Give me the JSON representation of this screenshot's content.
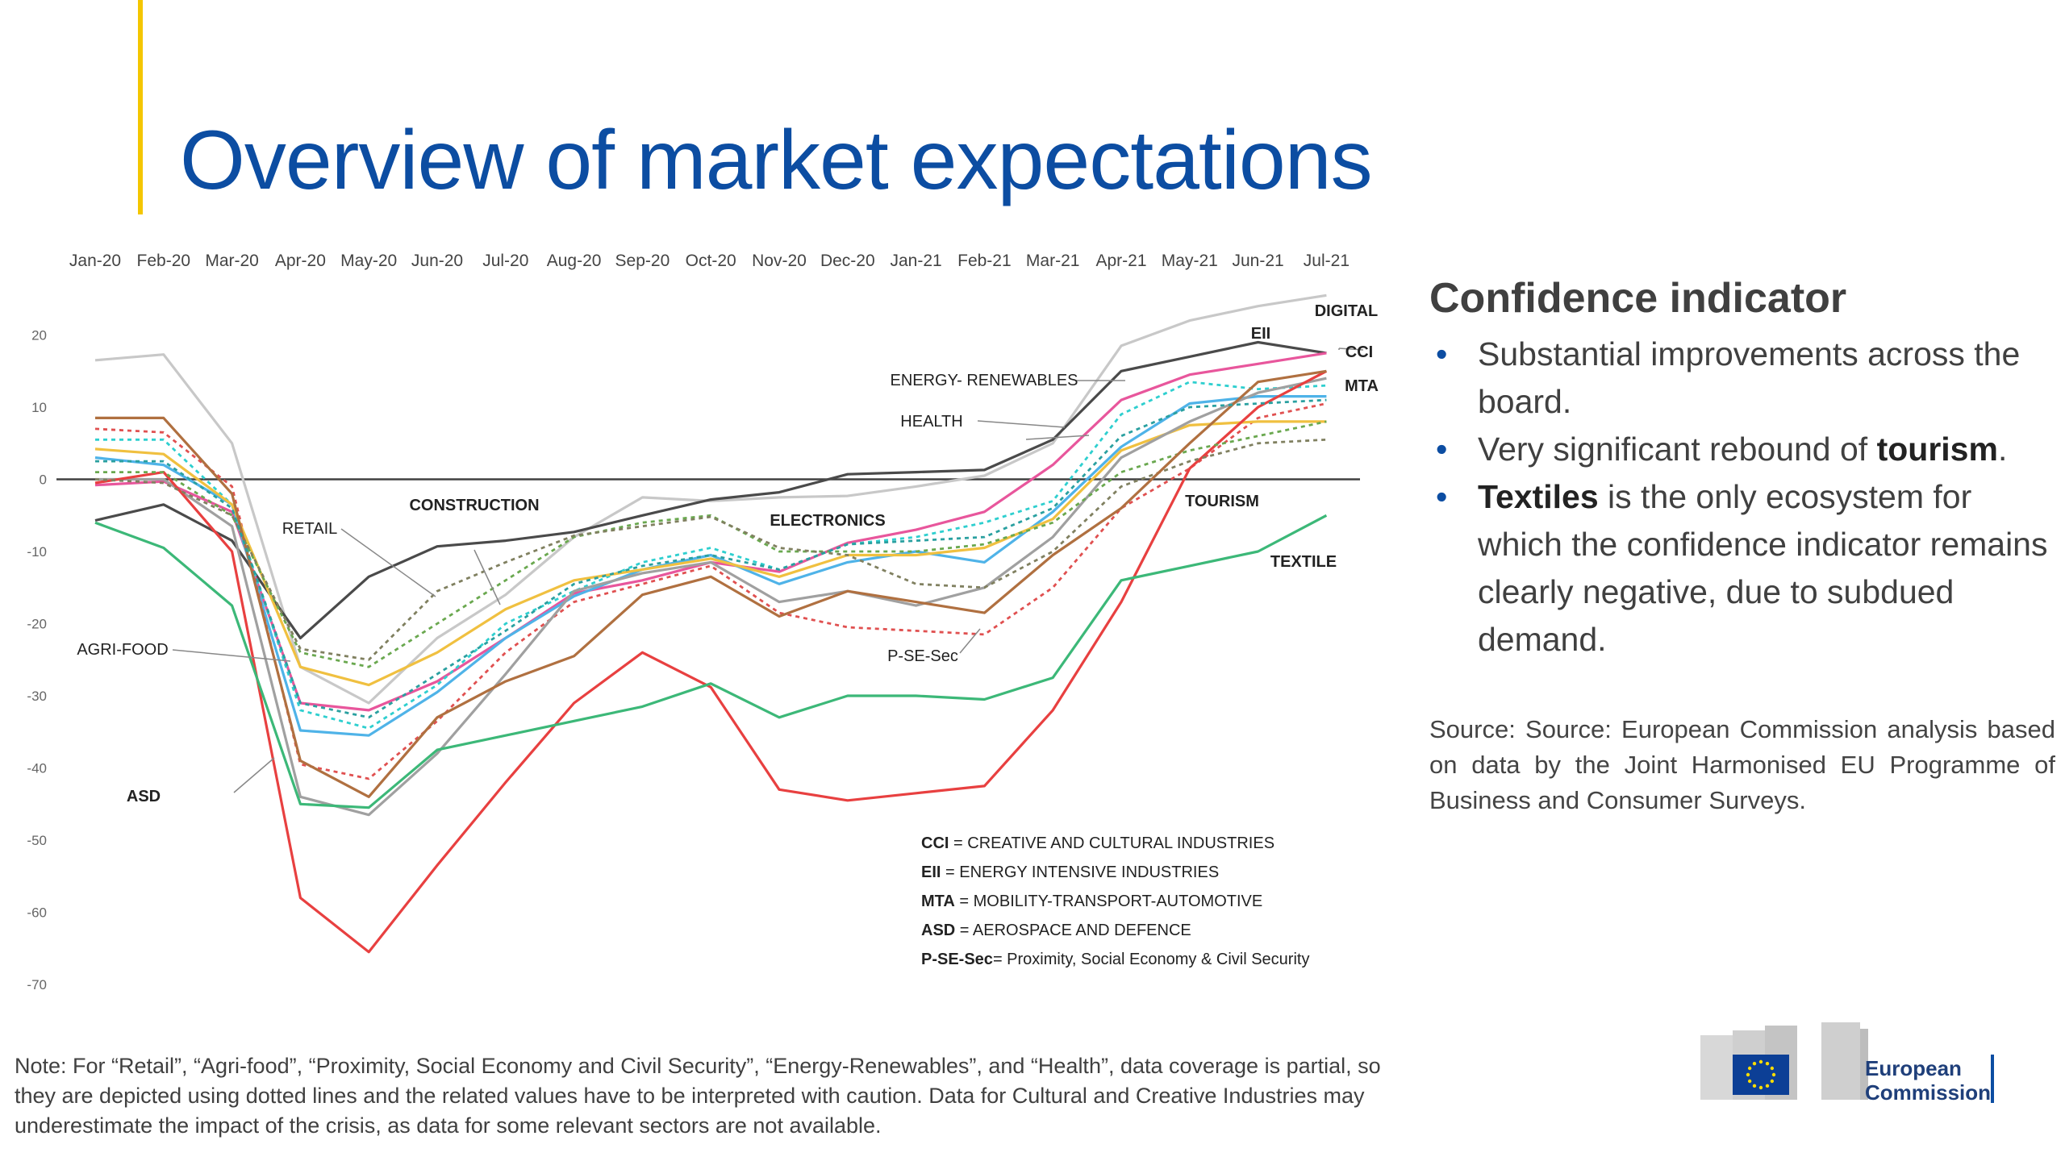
{
  "slide": {
    "title": "Overview of market expectations"
  },
  "panel": {
    "heading": "Confidence indicator",
    "bullets": [
      {
        "parts": [
          {
            "text": "Substantial improvements across the board.",
            "bold": false
          }
        ]
      },
      {
        "parts": [
          {
            "text": "Very significant rebound of ",
            "bold": false
          },
          {
            "text": "tourism",
            "bold": true
          },
          {
            "text": ".",
            "bold": false
          }
        ]
      },
      {
        "parts": [
          {
            "text": "Textiles",
            "bold": true
          },
          {
            "text": " is the only ecosystem for which the confidence indicator remains clearly negative, due to subdued demand.",
            "bold": false
          }
        ]
      }
    ],
    "source": "Source: Source: European Commission analysis based on data by the Joint Harmonised EU Programme of Business and Consumer Surveys."
  },
  "note": "Note: For “Retail”, “Agri-food”, “Proximity, Social Economy and Civil Security”, “Energy-Renewables”, and “Health”, data coverage is partial, so they are depicted using dotted lines and the related values have to be interpreted with caution. Data for Cultural and Creative Industries may underestimate the impact of the crisis, as data for some relevant sectors are not available.",
  "logo": {
    "line1": "European",
    "line2": "Commission"
  },
  "chart_data": {
    "type": "line",
    "title": "",
    "xlabel": "",
    "ylabel": "",
    "ylim": [
      -70,
      20
    ],
    "yticks": [
      20,
      10,
      0,
      -10,
      -20,
      -30,
      -40,
      -50,
      -60,
      -70
    ],
    "x": [
      "Jan-20",
      "Feb-20",
      "Mar-20",
      "Apr-20",
      "May-20",
      "Jun-20",
      "Jul-20",
      "Aug-20",
      "Sep-20",
      "Oct-20",
      "Nov-20",
      "Dec-20",
      "Jan-21",
      "Feb-21",
      "Mar-21",
      "Apr-21",
      "May-21",
      "Jun-21",
      "Jul-21"
    ],
    "series": [
      {
        "name": "DIGITAL",
        "color": "#c8c8c8",
        "dash": false,
        "values": [
          16.5,
          17.3,
          5,
          -26,
          -31,
          -22,
          -16,
          -8,
          -2.5,
          -3,
          -2.5,
          -2.3,
          -1,
          0.5,
          5,
          18.5,
          22,
          24,
          25.5
        ]
      },
      {
        "name": "EII",
        "color": "#4a4a4a",
        "dash": false,
        "values": [
          -5.7,
          -3.5,
          -8.5,
          -22,
          -13.5,
          -9.3,
          -8.5,
          -7.3,
          -5,
          -2.8,
          -1.8,
          0.7,
          1,
          1.3,
          5.5,
          15,
          17,
          19,
          17.5
        ]
      },
      {
        "name": "CCI",
        "color": "#e8569c",
        "dash": false,
        "values": [
          -0.8,
          -0.3,
          -4.5,
          -31,
          -32,
          -28,
          -22,
          -15.8,
          -14,
          -11.5,
          -12.8,
          -8.8,
          -7,
          -4.5,
          2,
          11,
          14.5,
          16,
          17.5
        ]
      },
      {
        "name": "MTA",
        "color": "#4fb3e8",
        "dash": false,
        "values": [
          3,
          2,
          -3.5,
          -34.8,
          -35.5,
          -29.5,
          -22,
          -16.2,
          -12.5,
          -10.5,
          -14.5,
          -11.5,
          -10,
          -11.5,
          -4.5,
          4.5,
          10.5,
          11.5,
          11.5
        ]
      },
      {
        "name": "ENERGY- RENEWABLES",
        "color": "#2ecfcf",
        "dash": true,
        "values": [
          5.5,
          5.5,
          -3.5,
          -32,
          -34.5,
          -28.5,
          -20,
          -15.5,
          -11.5,
          -9.5,
          -12.5,
          -9,
          -8,
          -6,
          -3,
          9,
          13.5,
          12.5,
          13
        ]
      },
      {
        "name": "HEALTH",
        "color": "#e05050",
        "dash": true,
        "values": [
          7,
          6.5,
          -1,
          -39.5,
          -41.5,
          -33.5,
          -24,
          -17,
          -14.5,
          -12,
          -18.5,
          -20.5,
          -21,
          -21.5,
          -15,
          -4,
          1.5,
          8.5,
          10.5
        ]
      },
      {
        "name": "CONSTRUCTION",
        "color": "#f0c040",
        "dash": false,
        "values": [
          4.2,
          3.5,
          -3.5,
          -26,
          -28.5,
          -24,
          -18,
          -14,
          -12.5,
          -11,
          -13.5,
          -10.5,
          -10.5,
          -9.5,
          -5.5,
          4,
          7.5,
          8,
          8
        ]
      },
      {
        "name": "ELECTRONICS",
        "color": "#a0a0a0",
        "dash": false,
        "values": [
          0,
          0,
          -6.5,
          -44,
          -46.5,
          -38,
          -27,
          -15.5,
          -13,
          -11.5,
          -17,
          -15.5,
          -17.5,
          -15,
          -8,
          3,
          8,
          12,
          14
        ]
      },
      {
        "name": "TOURISM",
        "color": "#e84040",
        "dash": false,
        "values": [
          -0.5,
          1,
          -10,
          -58,
          -65.5,
          -53.5,
          -42,
          -31,
          -24,
          -28.8,
          -43,
          -44.5,
          -43.5,
          -42.5,
          -32,
          -17,
          1.5,
          10,
          15
        ]
      },
      {
        "name": "TEXTILE",
        "color": "#3cb878",
        "dash": false,
        "values": [
          -6,
          -9.5,
          -17.5,
          -45,
          -45.5,
          -37.5,
          -35.5,
          -33.5,
          -31.5,
          -28.3,
          -33,
          -30,
          -30,
          -30.5,
          -27.5,
          -14,
          -12,
          -10,
          -5
        ]
      },
      {
        "name": "RETAIL",
        "color": "#6aa84f",
        "dash": true,
        "values": [
          1,
          1,
          -5,
          -24,
          -26,
          -20,
          -14,
          -8,
          -6,
          -5,
          -10,
          -10,
          -10,
          -9,
          -6,
          1,
          4,
          6,
          8
        ]
      },
      {
        "name": "AGRI-FOOD",
        "color": "#808060",
        "dash": true,
        "values": [
          0,
          -0.5,
          -5,
          -23.5,
          -25,
          -15.5,
          -11.5,
          -7.8,
          -6.5,
          -5.2,
          -9.5,
          -10.5,
          -14.5,
          -15,
          -10,
          -1,
          2.5,
          5,
          5.5
        ]
      },
      {
        "name": "ASD",
        "color": "#b07040",
        "dash": false,
        "values": [
          8.5,
          8.5,
          -2,
          -39,
          -44,
          -33,
          -28,
          -24.5,
          -16,
          -13.5,
          -19,
          -15.5,
          -17,
          -18.5,
          -10.5,
          -4,
          5,
          13.5,
          15
        ]
      },
      {
        "name": "P-SE-Sec",
        "color": "#2aa0a0",
        "dash": true,
        "values": [
          2.5,
          2.5,
          -4,
          -31,
          -33,
          -27,
          -21,
          -14.5,
          -12,
          -10.5,
          -12.5,
          -9,
          -8.5,
          -8,
          -4,
          6,
          10,
          10.5,
          11
        ]
      }
    ],
    "labels": [
      {
        "text": "DIGITAL",
        "bold": true
      },
      {
        "text": "EII",
        "bold": true
      },
      {
        "text": "CCI",
        "bold": true
      },
      {
        "text": "MTA",
        "bold": true
      },
      {
        "text": "ENERGY- RENEWABLES",
        "bold": false
      },
      {
        "text": "HEALTH",
        "bold": false
      },
      {
        "text": "RETAIL",
        "bold": false
      },
      {
        "text": "CONSTRUCTION",
        "bold": true
      },
      {
        "text": "ELECTRONICS",
        "bold": true
      },
      {
        "text": "TOURISM",
        "bold": true
      },
      {
        "text": "TEXTILE",
        "bold": true
      },
      {
        "text": "AGRI-FOOD",
        "bold": false
      },
      {
        "text": "P-SE-Sec",
        "bold": false
      },
      {
        "text": "ASD",
        "bold": true
      }
    ],
    "legend_notes": [
      {
        "abbr": "CCI",
        "text": " = CREATIVE AND CULTURAL INDUSTRIES"
      },
      {
        "abbr": "EII",
        "text": " = ENERGY INTENSIVE INDUSTRIES"
      },
      {
        "abbr": "MTA",
        "text": " = MOBILITY-TRANSPORT-AUTOMOTIVE"
      },
      {
        "abbr": "ASD",
        "text": " = AEROSPACE AND DEFENCE"
      },
      {
        "abbr": "P-SE-Sec",
        "text": "= Proximity, Social Economy  & Civil Security"
      }
    ]
  }
}
